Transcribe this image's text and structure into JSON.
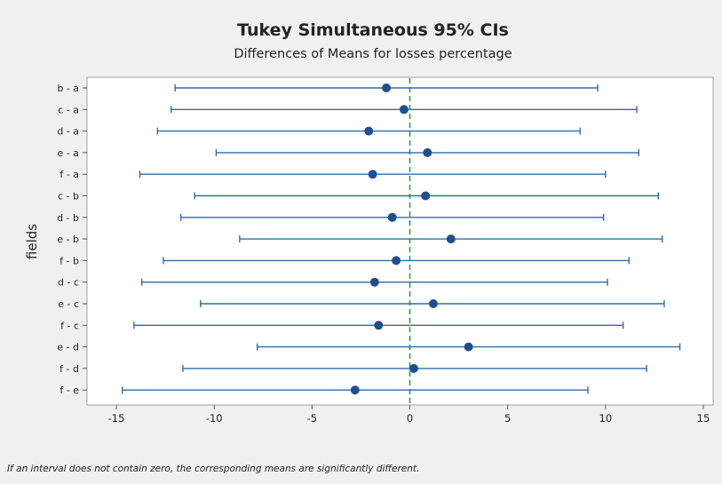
{
  "chart_data": {
    "type": "interval",
    "title": "Tukey Simultaneous 95% CIs",
    "subtitle": "Differences of Means for losses percentage",
    "ylabel": "fields",
    "xlabel": "",
    "xlim": [
      -16.5,
      15.5
    ],
    "x_ticks": [
      -15,
      -10,
      -5,
      0,
      5,
      10,
      15
    ],
    "x_tick_labels": [
      "-15",
      "-10",
      "-5",
      "0",
      "5",
      "10",
      "15"
    ],
    "reference_line": 0,
    "categories": [
      "b - a",
      "c - a",
      "d - a",
      "e - a",
      "f - a",
      "c - b",
      "d - b",
      "e - b",
      "f - b",
      "d - c",
      "e - c",
      "f - c",
      "e - d",
      "f - d",
      "f - e"
    ],
    "means": [
      -1.2,
      -0.3,
      -2.1,
      0.9,
      -1.9,
      0.8,
      -0.9,
      2.1,
      -0.7,
      -1.8,
      1.2,
      -1.6,
      3.0,
      0.2,
      -2.8
    ],
    "lower": [
      -12.0,
      -12.2,
      -12.9,
      -9.9,
      -13.8,
      -11.0,
      -11.7,
      -8.7,
      -12.6,
      -13.7,
      -10.7,
      -14.1,
      -7.8,
      -11.6,
      -14.7
    ],
    "upper": [
      9.6,
      11.6,
      8.7,
      11.7,
      10.0,
      12.7,
      9.9,
      12.9,
      11.2,
      10.1,
      13.0,
      10.9,
      13.8,
      12.1,
      9.1
    ],
    "footnote": "If an interval does not contain zero, the corresponding means are significantly different.",
    "colors": {
      "interval": "#2e6dad",
      "mean_marker": "#1f4f8f",
      "reference_line": "#2e9e4a",
      "plot_bg": "#ffffff",
      "page_bg": "#f0f0f0"
    },
    "grid": false
  }
}
